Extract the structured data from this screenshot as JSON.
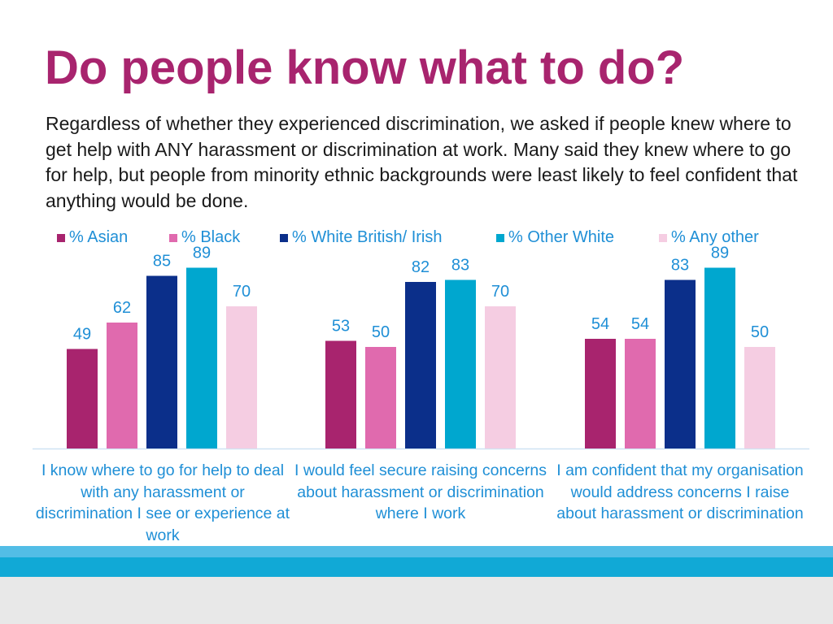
{
  "title": "Do people know what to do?",
  "intro": "Regardless of whether they experienced discrimination, we asked if people knew where to get help with ANY harassment or discrimination at work. Many said they knew where to go for help, but people from minority ethnic backgrounds were least likely to feel confident that anything would be done.",
  "colors": {
    "title": "#a8246e",
    "label_text": "#1f8fd6",
    "footer_blue": "#11a9d6",
    "footer_grey": "#e8e8e8"
  },
  "chart_data": {
    "type": "bar",
    "categories": [
      "I know where to go for help to deal with any harassment or discrimination I see or experience at work",
      "I would feel secure raising concerns about harassment or discrimination where I work",
      "I am confident that my organisation would address concerns I raise about harassment or discrimination"
    ],
    "series": [
      {
        "name": "% Asian",
        "color": "#a8246e",
        "values": [
          49,
          53,
          54
        ]
      },
      {
        "name": "% Black",
        "color": "#e06aae",
        "values": [
          62,
          50,
          54
        ]
      },
      {
        "name": "% White British/ Irish",
        "color": "#0b2f8a",
        "values": [
          85,
          82,
          83
        ]
      },
      {
        "name": "% Other White",
        "color": "#00a7cf",
        "values": [
          89,
          83,
          89
        ]
      },
      {
        "name": "% Any other",
        "color": "#f5cde2",
        "values": [
          70,
          70,
          50
        ]
      }
    ],
    "ylim": [
      0,
      100
    ],
    "legend": "top",
    "grid": false,
    "data_labels": true
  }
}
